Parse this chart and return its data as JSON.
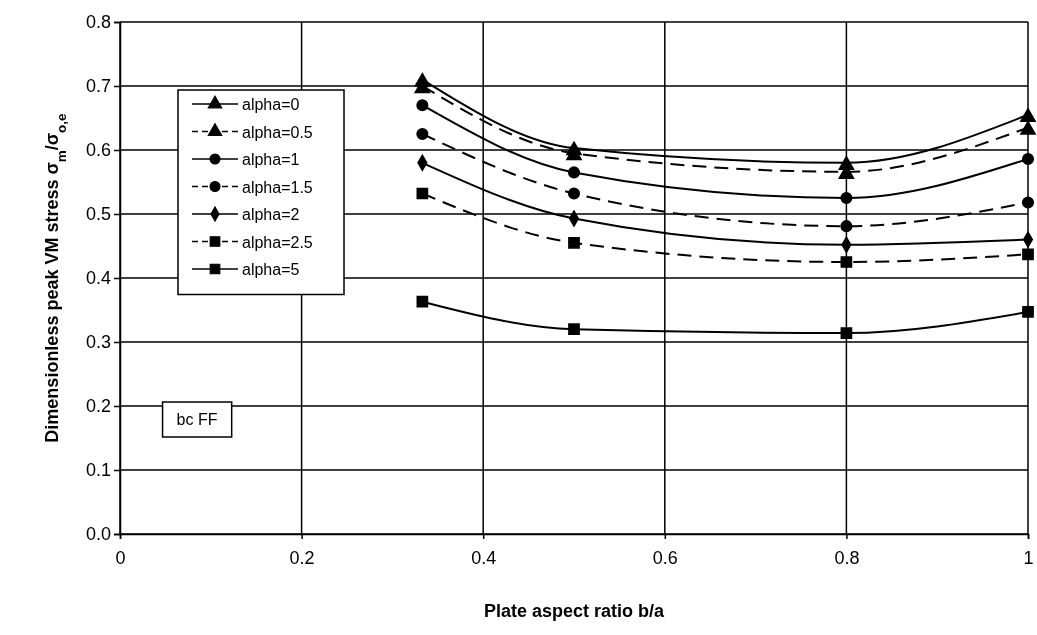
{
  "chart_data": {
    "type": "line",
    "xlabel": "Plate aspect ratio   b/a",
    "ylabel": "Dimensionless peak VM stress  σ$_{m}$/σ$_{o,e}$",
    "x": [
      0.333,
      0.5,
      0.8,
      1
    ],
    "xlim": [
      0,
      1
    ],
    "xticks": [
      0,
      0.2,
      0.4,
      0.6,
      0.8,
      1
    ],
    "ylim": [
      0,
      0.8
    ],
    "yticks": [
      {
        "value": 0,
        "label": "0.0"
      },
      {
        "value": 0.1,
        "label": "0.1"
      },
      {
        "value": 0.2,
        "label": "0.2"
      },
      {
        "value": 0.3,
        "label": "0.3"
      },
      {
        "value": 0.4,
        "label": "0.4"
      },
      {
        "value": 0.5,
        "label": "0.5"
      },
      {
        "value": 0.6,
        "label": "0.6"
      },
      {
        "value": 0.7,
        "label": "0.7"
      },
      {
        "value": 0.8,
        "label": "0.8"
      }
    ],
    "grid": true,
    "legend": "top left",
    "annotations": [
      "bc FF"
    ],
    "series": [
      {
        "name": "alpha=0",
        "color": "#000000",
        "marker": "triangle",
        "line_style": "solid",
        "values": [
          0.71,
          0.603,
          0.58,
          0.655
        ]
      },
      {
        "name": "alpha=0.5",
        "color": "#000000",
        "marker": "triangle",
        "line_style": "dashed",
        "values": [
          0.7,
          0.595,
          0.566,
          0.635
        ]
      },
      {
        "name": "alpha=1",
        "color": "#000000",
        "marker": "circle",
        "line_style": "solid",
        "values": [
          0.67,
          0.565,
          0.525,
          0.586
        ]
      },
      {
        "name": "alpha=1.5",
        "color": "#000000",
        "marker": "circle",
        "line_style": "dashed",
        "values": [
          0.625,
          0.532,
          0.481,
          0.518
        ]
      },
      {
        "name": "alpha=2",
        "color": "#000000",
        "marker": "diamond",
        "line_style": "solid",
        "values": [
          0.58,
          0.493,
          0.452,
          0.46
        ]
      },
      {
        "name": "alpha=2.5",
        "color": "#000000",
        "marker": "square",
        "line_style": "dashed",
        "values": [
          0.532,
          0.455,
          0.425,
          0.437
        ]
      },
      {
        "name": "alpha=5",
        "color": "#000000",
        "marker": "square",
        "line_style": "solid",
        "values": [
          0.363,
          0.32,
          0.314,
          0.347
        ]
      }
    ]
  }
}
